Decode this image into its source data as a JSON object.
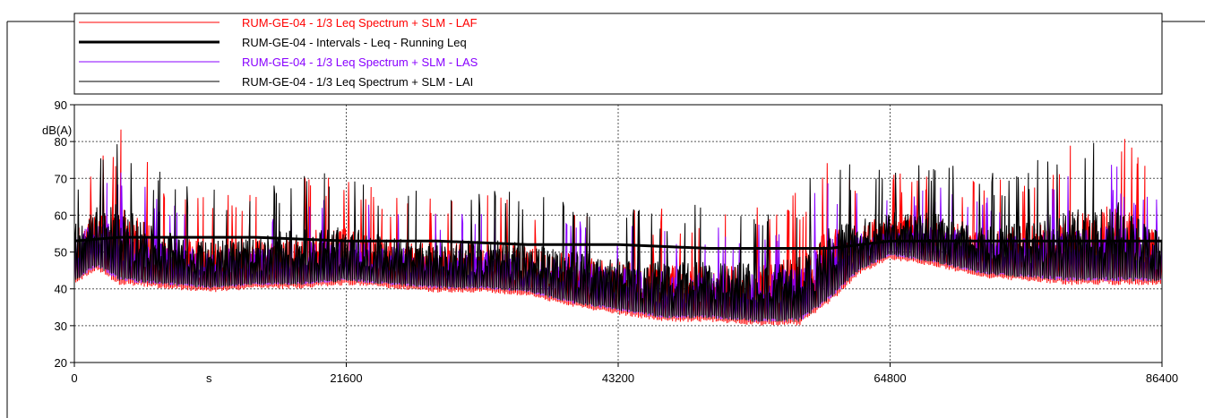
{
  "chart_data": {
    "type": "line",
    "title": "",
    "xlabel": "",
    "x_unit": "s",
    "ylabel": "dB(A)",
    "xlim": [
      0,
      86400
    ],
    "ylim": [
      20,
      90
    ],
    "x_ticks": [
      0,
      21600,
      43200,
      64800,
      86400
    ],
    "x_tick_labels": [
      "0",
      "21600",
      "43200",
      "64800",
      "86400"
    ],
    "y_ticks": [
      20,
      30,
      40,
      50,
      60,
      70,
      80,
      90
    ],
    "y_tick_labels": [
      "20",
      "30",
      "40",
      "50",
      "60",
      "70",
      "80",
      "90"
    ],
    "grid": "dashed",
    "legend_position": "top",
    "series": [
      {
        "name": "RUM-GE-04 - 1/3 Leq Spectrum + SLM - LAF",
        "color": "#ff0000",
        "style": "thin",
        "note_envelope": "min/max envelope per time",
        "x": [
          0,
          1800,
          3600,
          7200,
          10800,
          14400,
          18000,
          21600,
          25200,
          28800,
          32400,
          36000,
          39600,
          43200,
          46800,
          50400,
          54000,
          57600,
          60000,
          62400,
          64800,
          68400,
          72000,
          75600,
          79200,
          82800,
          86400
        ],
        "y_min": [
          41,
          45,
          41,
          40,
          39,
          40,
          40,
          41,
          40,
          39,
          39,
          38,
          35,
          33,
          31,
          31,
          30,
          30,
          36,
          44,
          48,
          46,
          43,
          42,
          41,
          41,
          41
        ],
        "y_max": [
          72,
          82,
          84,
          70,
          66,
          66,
          72,
          72,
          66,
          66,
          66,
          65,
          64,
          62,
          62,
          62,
          62,
          68,
          78,
          72,
          72,
          74,
          70,
          72,
          80,
          86,
          68
        ]
      },
      {
        "name": "RUM-GE-04 - Intervals - Leq - Running Leq",
        "color": "#000000",
        "style": "thick",
        "x": [
          0,
          3600,
          7200,
          14400,
          21600,
          28800,
          36000,
          43200,
          46800,
          50400,
          54000,
          57600,
          60000,
          64800,
          72000,
          79200,
          86400
        ],
        "y": [
          53,
          54,
          54,
          54,
          53,
          53,
          52,
          52,
          51.5,
          51,
          51,
          51,
          51,
          53,
          53,
          53,
          53
        ]
      },
      {
        "name": "RUM-GE-04 - 1/3 Leq Spectrum + SLM - LAS",
        "color": "#8800ff",
        "style": "thin",
        "x": [
          0,
          1800,
          3600,
          7200,
          10800,
          14400,
          18000,
          21600,
          25200,
          28800,
          32400,
          36000,
          39600,
          43200,
          46800,
          50400,
          54000,
          57600,
          60000,
          62400,
          64800,
          68400,
          72000,
          75600,
          79200,
          82800,
          86400
        ],
        "y_min": [
          42,
          46,
          42,
          41,
          40,
          41,
          41,
          42,
          41,
          40,
          40,
          39,
          36,
          34,
          32,
          32,
          31,
          31,
          37,
          45,
          49,
          47,
          44,
          43,
          42,
          42,
          42
        ],
        "y_max": [
          66,
          72,
          74,
          64,
          62,
          62,
          64,
          65,
          62,
          61,
          61,
          60,
          59,
          58,
          58,
          57,
          57,
          62,
          72,
          66,
          66,
          68,
          65,
          66,
          72,
          74,
          63
        ]
      },
      {
        "name": "RUM-GE-04 - 1/3 Leq Spectrum + SLM - LAI",
        "color": "#000000",
        "style": "thin",
        "x": [
          0,
          1800,
          3600,
          7200,
          10800,
          14400,
          18000,
          21600,
          25200,
          28800,
          32400,
          36000,
          39600,
          43200,
          46800,
          50400,
          54000,
          57600,
          60000,
          62400,
          64800,
          68400,
          72000,
          75600,
          79200,
          82800,
          86400
        ],
        "y_min": [
          42,
          46,
          42,
          41,
          40,
          41,
          41,
          42,
          41,
          40,
          40,
          39,
          36,
          34,
          32,
          32,
          31,
          31,
          37,
          45,
          49,
          47,
          44,
          43,
          42,
          42,
          42
        ],
        "y_max": [
          73,
          82,
          84,
          71,
          67,
          67,
          73,
          73,
          67,
          67,
          67,
          66,
          65,
          63,
          63,
          63,
          63,
          69,
          78,
          73,
          73,
          75,
          71,
          73,
          81,
          86,
          69
        ]
      }
    ]
  }
}
